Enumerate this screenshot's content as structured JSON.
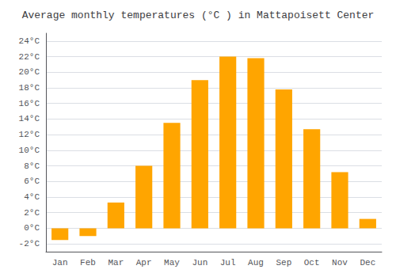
{
  "chart_data": {
    "type": "bar",
    "title": "Average monthly temperatures (°C ) in Mattapoisett Center",
    "categories": [
      "Jan",
      "Feb",
      "Mar",
      "Apr",
      "May",
      "Jun",
      "Jul",
      "Aug",
      "Sep",
      "Oct",
      "Nov",
      "Dec"
    ],
    "values": [
      -1.5,
      -1.0,
      3.3,
      8.0,
      13.5,
      19.0,
      22.0,
      21.8,
      17.8,
      12.7,
      7.2,
      1.2
    ],
    "color": "#FFA500",
    "ylim": [
      -3,
      25
    ],
    "yticks": [
      {
        "value": -2,
        "label": "-2°C"
      },
      {
        "value": 0,
        "label": "0°C"
      },
      {
        "value": 2,
        "label": "2°C"
      },
      {
        "value": 4,
        "label": "4°C"
      },
      {
        "value": 6,
        "label": "6°C"
      },
      {
        "value": 8,
        "label": "8°C"
      },
      {
        "value": 10,
        "label": "10°C"
      },
      {
        "value": 12,
        "label": "12°C"
      },
      {
        "value": 14,
        "label": "14°C"
      },
      {
        "value": 16,
        "label": "16°C"
      },
      {
        "value": 18,
        "label": "18°C"
      },
      {
        "value": 20,
        "label": "20°C"
      },
      {
        "value": 22,
        "label": "22°C"
      },
      {
        "value": 24,
        "label": "24°C"
      }
    ],
    "grid": true
  }
}
